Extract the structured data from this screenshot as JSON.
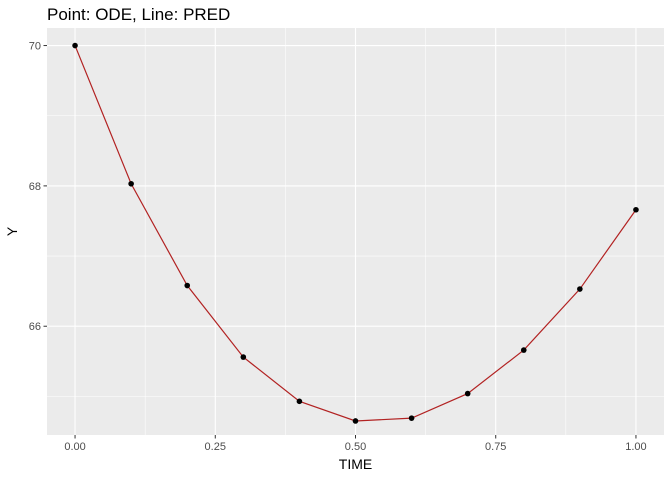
{
  "chart_data": {
    "type": "line",
    "title": "Point: ODE, Line: PRED",
    "xlabel": "TIME",
    "ylabel": "Y",
    "xlim": [
      -0.05,
      1.05
    ],
    "ylim": [
      64.45,
      70.25
    ],
    "x_ticks": [
      0.0,
      0.25,
      0.5,
      0.75,
      1.0
    ],
    "x_tick_labels": [
      "0.00",
      "0.25",
      "0.50",
      "0.75",
      "1.00"
    ],
    "y_ticks": [
      66,
      68,
      70
    ],
    "y_tick_labels": [
      "66",
      "68",
      "70"
    ],
    "grid": true,
    "series": [
      {
        "kind": "points",
        "color": "#000000",
        "x": [
          0.0,
          0.1,
          0.2,
          0.3,
          0.4,
          0.5,
          0.6,
          0.7,
          0.8,
          0.9,
          1.0
        ],
        "y": [
          70.0,
          68.03,
          66.58,
          65.56,
          64.93,
          64.65,
          64.69,
          65.04,
          65.66,
          66.53,
          67.66
        ]
      },
      {
        "kind": "line",
        "color": "#b22222",
        "x": [
          0.0,
          0.1,
          0.2,
          0.3,
          0.4,
          0.5,
          0.6,
          0.7,
          0.8,
          0.9,
          1.0
        ],
        "y": [
          70.0,
          68.03,
          66.58,
          65.56,
          64.93,
          64.65,
          64.69,
          65.04,
          65.66,
          66.53,
          67.66
        ]
      }
    ],
    "panel_background": "#ebebeb",
    "grid_color": "#ffffff"
  }
}
